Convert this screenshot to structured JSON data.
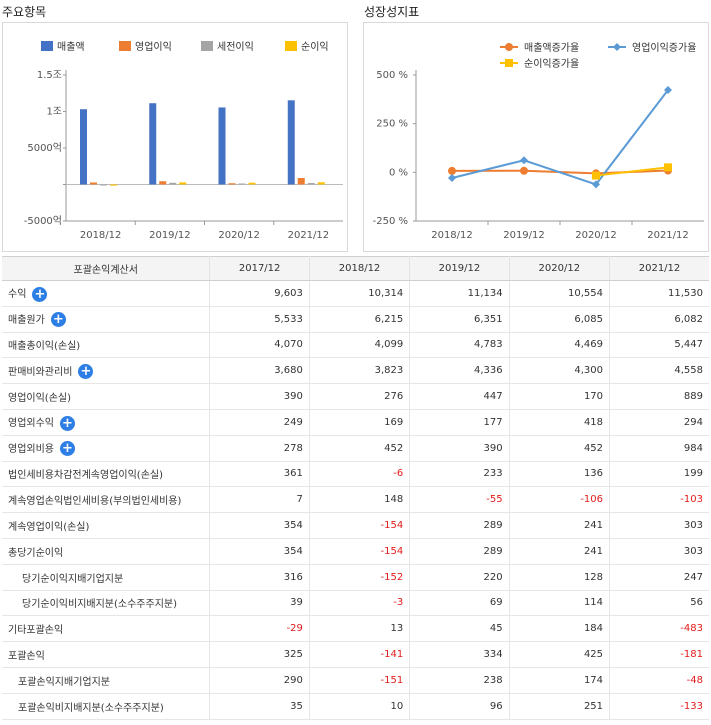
{
  "panels": {
    "left_title": "주요항목",
    "right_title": "성장성지표"
  },
  "chart_data": [
    {
      "type": "bar",
      "title": "주요항목",
      "categories": [
        "2018/12",
        "2019/12",
        "2020/12",
        "2021/12"
      ],
      "y_ticks": [
        "1.5조",
        "1조",
        "5000억",
        "0",
        "-5000억"
      ],
      "ylim": [
        -5000,
        15000
      ],
      "legend_position": "top",
      "series": [
        {
          "name": "매출액",
          "color": "#4472c4",
          "values": [
            10314,
            11134,
            10554,
            11530
          ]
        },
        {
          "name": "영업이익",
          "color": "#ed7d31",
          "values": [
            276,
            447,
            170,
            889
          ]
        },
        {
          "name": "세전이익",
          "color": "#a5a5a5",
          "values": [
            -6,
            233,
            136,
            199
          ]
        },
        {
          "name": "순이익",
          "color": "#ffc000",
          "values": [
            -154,
            289,
            241,
            303
          ]
        }
      ]
    },
    {
      "type": "line",
      "title": "성장성지표",
      "categories": [
        "2018/12",
        "2019/12",
        "2020/12",
        "2021/12"
      ],
      "y_ticks": [
        "500 %",
        "250 %",
        "0 %",
        "-250 %"
      ],
      "ylim": [
        -250,
        500
      ],
      "legend_position": "top",
      "series": [
        {
          "name": "매출액증가율",
          "color": "#ed7d31",
          "marker": "circle",
          "values": [
            7.4,
            8.0,
            -5.2,
            9.2
          ]
        },
        {
          "name": "영업이익증가율",
          "color": "#5b9bd5",
          "marker": "diamond",
          "values": [
            -29.2,
            62.0,
            -62.0,
            423.0
          ]
        },
        {
          "name": "순이익증가율",
          "color": "#ffc000",
          "marker": "square",
          "values": [
            null,
            null,
            -16.6,
            25.7
          ]
        }
      ]
    }
  ],
  "table": {
    "header": [
      "포괄손익계산서",
      "2017/12",
      "2018/12",
      "2019/12",
      "2020/12",
      "2021/12"
    ],
    "rows": [
      {
        "label": "수익",
        "plus": true,
        "indent": 0,
        "values": [
          "9,603",
          "10,314",
          "11,134",
          "10,554",
          "11,530"
        ]
      },
      {
        "label": "매출원가",
        "plus": true,
        "indent": 0,
        "values": [
          "5,533",
          "6,215",
          "6,351",
          "6,085",
          "6,082"
        ]
      },
      {
        "label": "매출총이익(손실)",
        "plus": false,
        "indent": 0,
        "values": [
          "4,070",
          "4,099",
          "4,783",
          "4,469",
          "5,447"
        ]
      },
      {
        "label": "판매비와관리비",
        "plus": true,
        "indent": 0,
        "values": [
          "3,680",
          "3,823",
          "4,336",
          "4,300",
          "4,558"
        ]
      },
      {
        "label": "영업이익(손실)",
        "plus": false,
        "indent": 0,
        "values": [
          "390",
          "276",
          "447",
          "170",
          "889"
        ]
      },
      {
        "label": "영업외수익",
        "plus": true,
        "indent": 0,
        "values": [
          "249",
          "169",
          "177",
          "418",
          "294"
        ]
      },
      {
        "label": "영업외비용",
        "plus": true,
        "indent": 0,
        "values": [
          "278",
          "452",
          "390",
          "452",
          "984"
        ]
      },
      {
        "label": "법인세비용차감전계속영업이익(손실)",
        "plus": false,
        "indent": 0,
        "values": [
          "361",
          "-6",
          "233",
          "136",
          "199"
        ]
      },
      {
        "label": "계속영업손익법인세비용(부의법인세비용)",
        "plus": false,
        "indent": 0,
        "values": [
          "7",
          "148",
          "-55",
          "-106",
          "-103"
        ]
      },
      {
        "label": "계속영업이익(손실)",
        "plus": false,
        "indent": 0,
        "values": [
          "354",
          "-154",
          "289",
          "241",
          "303"
        ]
      },
      {
        "label": "총당기순이익",
        "plus": false,
        "indent": 0,
        "values": [
          "354",
          "-154",
          "289",
          "241",
          "303"
        ]
      },
      {
        "label": "당기순이익지배기업지분",
        "plus": false,
        "indent": 1,
        "values": [
          "316",
          "-152",
          "220",
          "128",
          "247"
        ]
      },
      {
        "label": "당기순이익비지배지분(소수주주지분)",
        "plus": false,
        "indent": 1,
        "values": [
          "39",
          "-3",
          "69",
          "114",
          "56"
        ]
      },
      {
        "label": "기타포괄손익",
        "plus": false,
        "indent": 0,
        "values": [
          "-29",
          "13",
          "45",
          "184",
          "-483"
        ]
      },
      {
        "label": "포괄손익",
        "plus": false,
        "indent": 0,
        "values": [
          "325",
          "-141",
          "334",
          "425",
          "-181"
        ]
      },
      {
        "label": "포괄손익지배기업지분",
        "plus": false,
        "indent": 2,
        "values": [
          "290",
          "-151",
          "238",
          "174",
          "-48"
        ]
      },
      {
        "label": "포괄손익비지배지분(소수주주지분)",
        "plus": false,
        "indent": 2,
        "values": [
          "35",
          "10",
          "96",
          "251",
          "-133"
        ]
      }
    ]
  }
}
